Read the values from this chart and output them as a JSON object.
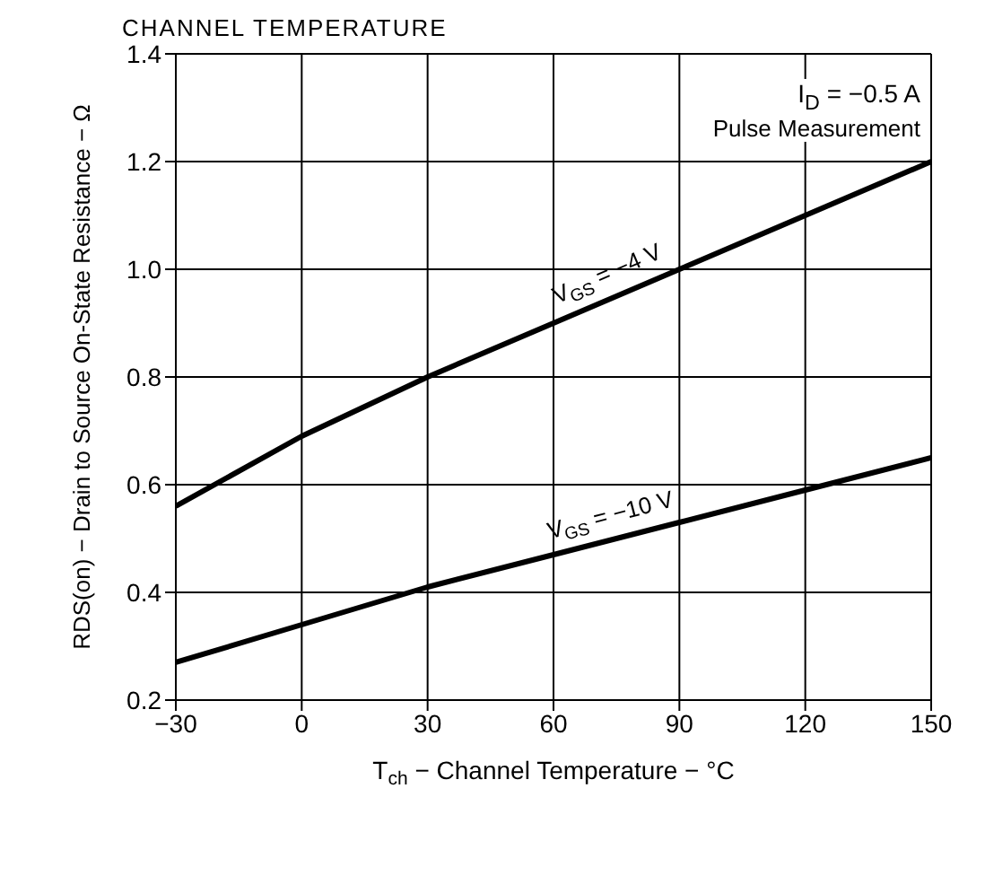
{
  "chart_data": {
    "type": "line",
    "title": "CHANNEL TEMPERATURE",
    "xlabel": "T$_{ch}$ − Channel Temperature − °C",
    "ylabel": "RDS(on) − Drain to Source On-State Resistance − Ω",
    "x": [
      -30,
      0,
      30,
      60,
      90,
      120,
      150
    ],
    "series": [
      {
        "name": "V$_{GS}$ = −4 V",
        "color": "#000000",
        "values": [
          0.56,
          0.69,
          0.8,
          0.9,
          1.0,
          1.1,
          1.2
        ]
      },
      {
        "name": "V$_{GS}$ = −10 V",
        "color": "#000000",
        "values": [
          0.27,
          0.34,
          0.41,
          0.47,
          0.53,
          0.59,
          0.65
        ]
      }
    ],
    "xlim": [
      -30,
      150
    ],
    "xticks": [
      {
        "value": -30,
        "label": "−30"
      },
      0,
      30,
      60,
      90,
      120,
      150
    ],
    "ylim": [
      0.2,
      1.4
    ],
    "yticks": [
      0.2,
      0.4,
      0.6,
      0.8,
      {
        "value": 1,
        "label": "1.0"
      },
      1.2,
      1.4
    ],
    "annotations": [
      "I$_{D}$ = −0.5 A",
      "Pulse Measurement"
    ],
    "grid": true,
    "marker": "none",
    "line_style": "solid"
  }
}
